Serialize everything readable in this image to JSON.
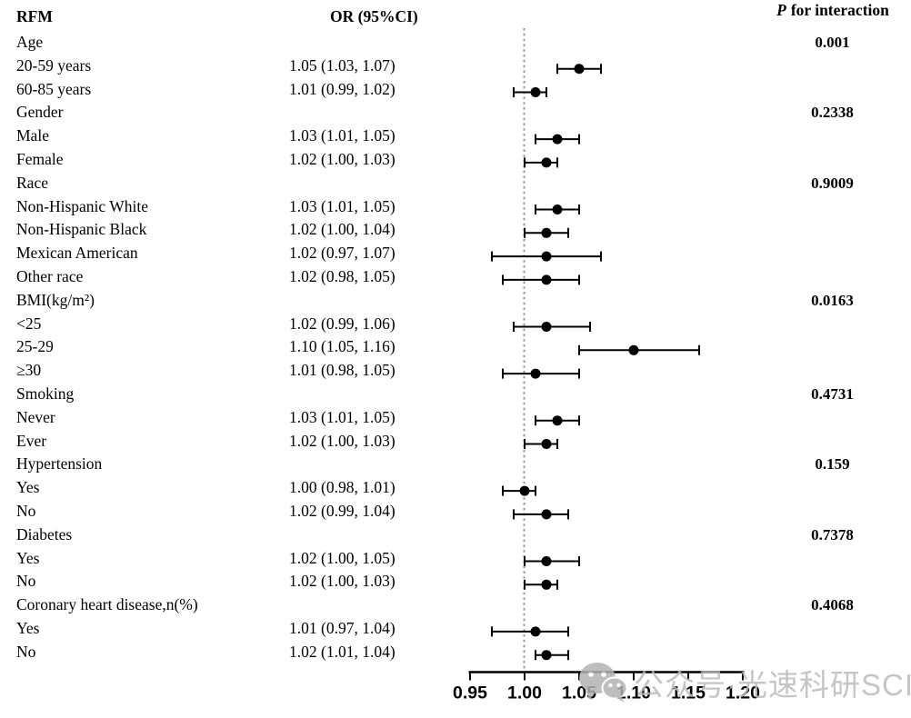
{
  "header": {
    "rfm": "RFM",
    "or": "OR (95%CI)",
    "p_italic": "P",
    "p_rest": "for interaction"
  },
  "watermark": {
    "icon": "wechat-icon",
    "text": "公众号·光速科研SCI"
  },
  "colors": {
    "text": "#000000",
    "marker": "#000000",
    "axis": "#000000",
    "reference_line": "#9a9a9a",
    "watermark": "#bcbcbc"
  },
  "chart_data": {
    "type": "forest",
    "title": "",
    "xlabel": "",
    "x_axis": {
      "range": [
        0.95,
        1.2
      ],
      "tick_labels": [
        "0.95",
        "1.00",
        "1.05",
        "1.10",
        "1.15",
        "1.20"
      ],
      "tick_values": [
        0.95,
        1.0,
        1.05,
        1.1,
        1.15,
        1.2
      ],
      "reference_line": 1.0,
      "grid": false
    },
    "rows": [
      {
        "label": "Age",
        "group": true,
        "p": "0.001"
      },
      {
        "label": "20-59 years",
        "or_text": "1.05 (1.03, 1.07)",
        "or": 1.05,
        "lo": 1.03,
        "hi": 1.07
      },
      {
        "label": "60-85 years",
        "or_text": "1.01 (0.99, 1.02)",
        "or": 1.01,
        "lo": 0.99,
        "hi": 1.02
      },
      {
        "label": "Gender",
        "group": true,
        "p": "0.2338"
      },
      {
        "label": "Male",
        "or_text": "1.03 (1.01, 1.05)",
        "or": 1.03,
        "lo": 1.01,
        "hi": 1.05
      },
      {
        "label": "Female",
        "or_text": "1.02 (1.00, 1.03)",
        "or": 1.02,
        "lo": 1.0,
        "hi": 1.03
      },
      {
        "label": "Race",
        "group": true,
        "p": "0.9009"
      },
      {
        "label": "Non-Hispanic White",
        "or_text": "1.03 (1.01, 1.05)",
        "or": 1.03,
        "lo": 1.01,
        "hi": 1.05
      },
      {
        "label": "Non-Hispanic Black",
        "or_text": "1.02 (1.00, 1.04)",
        "or": 1.02,
        "lo": 1.0,
        "hi": 1.04
      },
      {
        "label": "Mexican American",
        "or_text": "1.02 (0.97, 1.07)",
        "or": 1.02,
        "lo": 0.97,
        "hi": 1.07
      },
      {
        "label": "Other race",
        "or_text": "1.02 (0.98, 1.05)",
        "or": 1.02,
        "lo": 0.98,
        "hi": 1.05
      },
      {
        "label": "BMI(kg/m²)",
        "group": true,
        "p": "0.0163"
      },
      {
        "label": "<25",
        "or_text": "1.02 (0.99, 1.06)",
        "or": 1.02,
        "lo": 0.99,
        "hi": 1.06
      },
      {
        "label": "25-29",
        "or_text": "1.10 (1.05, 1.16)",
        "or": 1.1,
        "lo": 1.05,
        "hi": 1.16
      },
      {
        "label": "≥30",
        "or_text": "1.01 (0.98, 1.05)",
        "or": 1.01,
        "lo": 0.98,
        "hi": 1.05
      },
      {
        "label": "Smoking",
        "group": true,
        "p": "0.4731"
      },
      {
        "label": "Never",
        "or_text": "1.03 (1.01, 1.05)",
        "or": 1.03,
        "lo": 1.01,
        "hi": 1.05
      },
      {
        "label": "Ever",
        "or_text": "1.02 (1.00, 1.03)",
        "or": 1.02,
        "lo": 1.0,
        "hi": 1.03
      },
      {
        "label": "Hypertension",
        "group": true,
        "p": "0.159"
      },
      {
        "label": "Yes",
        "or_text": "1.00 (0.98, 1.01)",
        "or": 1.0,
        "lo": 0.98,
        "hi": 1.01
      },
      {
        "label": "No",
        "or_text": "1.02 (0.99, 1.04)",
        "or": 1.02,
        "lo": 0.99,
        "hi": 1.04
      },
      {
        "label": "Diabetes",
        "group": true,
        "p": "0.7378"
      },
      {
        "label": "Yes",
        "or_text": "1.02 (1.00, 1.05)",
        "or": 1.02,
        "lo": 1.0,
        "hi": 1.05
      },
      {
        "label": "No",
        "or_text": "1.02 (1.00, 1.03)",
        "or": 1.02,
        "lo": 1.0,
        "hi": 1.03
      },
      {
        "label": "Coronary heart disease,n(%)",
        "group": true,
        "p": "0.4068"
      },
      {
        "label": "Yes",
        "or_text": "1.01 (0.97, 1.04)",
        "or": 1.01,
        "lo": 0.97,
        "hi": 1.04
      },
      {
        "label": "No",
        "or_text": "1.02 (1.01, 1.04)",
        "or": 1.02,
        "lo": 1.01,
        "hi": 1.04
      }
    ]
  }
}
